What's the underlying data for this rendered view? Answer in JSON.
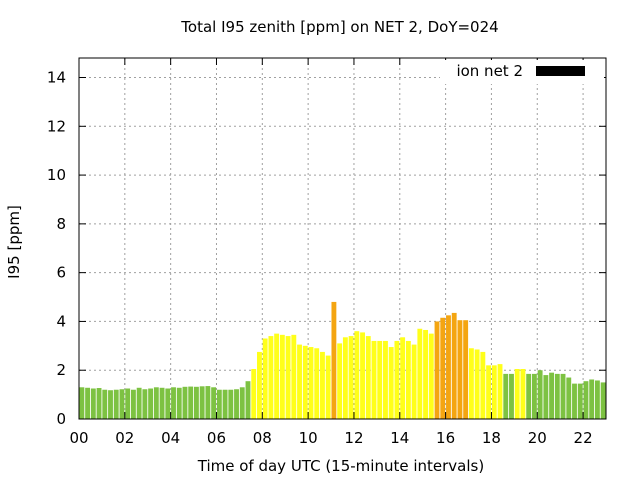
{
  "chart_data": {
    "type": "bar",
    "title": "Total I95 zenith [ppm] on NET 2, DoY=024",
    "xlabel": "Time of day UTC (15-minute intervals)",
    "ylabel": "I95 [ppm]",
    "xlim": [
      0,
      23
    ],
    "ylim": [
      0,
      14.8
    ],
    "grid": true,
    "x_ticks": [
      "00",
      "02",
      "04",
      "06",
      "08",
      "10",
      "12",
      "14",
      "16",
      "18",
      "20",
      "22"
    ],
    "y_ticks": [
      "0",
      "2",
      "4",
      "6",
      "8",
      "10",
      "12",
      "14"
    ],
    "legend": {
      "position": "top-right",
      "label": "ion net 2",
      "color": "#000000"
    },
    "colors": {
      "low": "#7dc242",
      "medium": "#ffff1a",
      "high": "#f4a511"
    },
    "series": [
      {
        "values": [
          1.3,
          1.28,
          1.25,
          1.27,
          1.2,
          1.18,
          1.2,
          1.22,
          1.25,
          1.2,
          1.28,
          1.22,
          1.25,
          1.3,
          1.28,
          1.25,
          1.3,
          1.28,
          1.32,
          1.33,
          1.32,
          1.34,
          1.35,
          1.3,
          1.2,
          1.2,
          1.2,
          1.22,
          1.3,
          1.55,
          2.05,
          2.75,
          3.3,
          3.4,
          3.5,
          3.45,
          3.4,
          3.45,
          3.05,
          3.0,
          2.95,
          2.9,
          2.75,
          2.6,
          4.8,
          3.1,
          3.35,
          3.4,
          3.6,
          3.55,
          3.4,
          3.2,
          3.2,
          3.2,
          2.95,
          3.2,
          3.35,
          3.2,
          3.05,
          3.7,
          3.65,
          3.5,
          4.0,
          4.15,
          4.25,
          4.35,
          4.05,
          4.05,
          2.9,
          2.85,
          2.75,
          2.2,
          2.2,
          2.25,
          1.85,
          1.85,
          2.05,
          2.05,
          1.85,
          1.85,
          2.0,
          1.8,
          1.9,
          1.85,
          1.85,
          1.7,
          1.45,
          1.45,
          1.55,
          1.62,
          1.58,
          1.5
        ],
        "levels": [
          "low",
          "low",
          "low",
          "low",
          "low",
          "low",
          "low",
          "low",
          "low",
          "low",
          "low",
          "low",
          "low",
          "low",
          "low",
          "low",
          "low",
          "low",
          "low",
          "low",
          "low",
          "low",
          "low",
          "low",
          "low",
          "low",
          "low",
          "low",
          "low",
          "low",
          "medium",
          "medium",
          "medium",
          "medium",
          "medium",
          "medium",
          "medium",
          "medium",
          "medium",
          "medium",
          "medium",
          "medium",
          "medium",
          "medium",
          "high",
          "medium",
          "medium",
          "medium",
          "medium",
          "medium",
          "medium",
          "medium",
          "medium",
          "medium",
          "medium",
          "medium",
          "medium",
          "medium",
          "medium",
          "medium",
          "medium",
          "medium",
          "high",
          "high",
          "high",
          "high",
          "high",
          "high",
          "medium",
          "medium",
          "medium",
          "medium",
          "medium",
          "medium",
          "low",
          "low",
          "medium",
          "medium",
          "low",
          "low",
          "low",
          "low",
          "low",
          "low",
          "low",
          "low",
          "low",
          "low",
          "low",
          "low",
          "low",
          "low"
        ]
      }
    ]
  }
}
